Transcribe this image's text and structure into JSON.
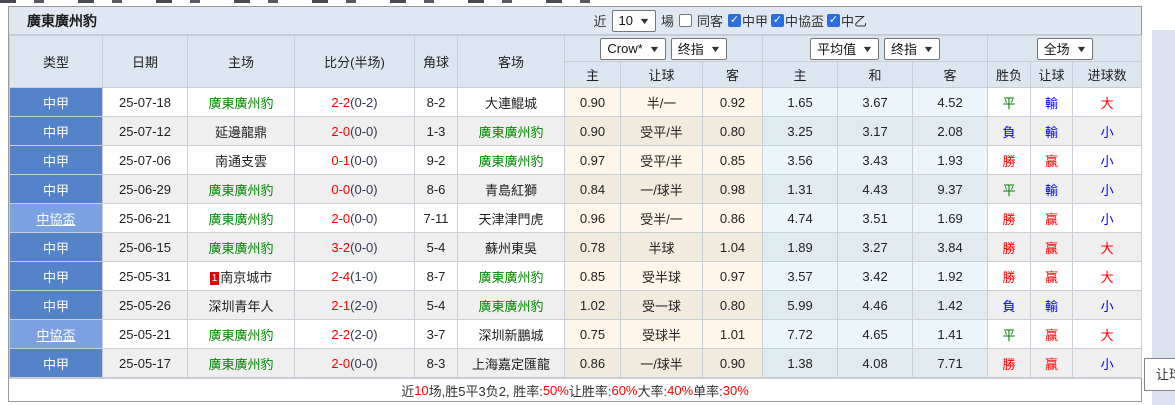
{
  "title": "廣東廣州豹",
  "controls": {
    "recent_label": "近",
    "recent_value": "10",
    "games_label": "場",
    "same_away_label": "同客",
    "same_away_checked": false,
    "leagues": [
      {
        "label": "中甲",
        "checked": true
      },
      {
        "label": "中協盃",
        "checked": true
      },
      {
        "label": "中乙",
        "checked": true
      }
    ]
  },
  "header": {
    "type": "类型",
    "date": "日期",
    "home": "主场",
    "score": "比分(半场)",
    "corners": "角球",
    "away": "客场",
    "ah": {
      "select1": "Crow*",
      "select2": "终指",
      "home": "主",
      "line": "让球",
      "away": "客"
    },
    "eu": {
      "select1": "平均值",
      "select2": "终指",
      "home": "主",
      "draw": "和",
      "away": "客"
    },
    "res": {
      "select": "全场",
      "wl": "胜负",
      "handicap": "让球",
      "goals": "进球数"
    }
  },
  "rows": [
    {
      "type": "中甲",
      "cup": false,
      "date": "25-07-18",
      "home": "廣東廣州豹",
      "home_green": true,
      "badge": "",
      "ft": "2-2",
      "ht": "(0-2)",
      "corners": "8-2",
      "away": "大連鯤城",
      "away_green": false,
      "ah_h": "0.90",
      "ah_line": "半/一",
      "ah_a": "0.92",
      "o_h": "1.65",
      "o_d": "3.67",
      "o_a": "4.52",
      "wl": "平",
      "wl_c": "draw",
      "hc": "輸",
      "hc_c": "loss",
      "gl": "大",
      "gl_c": "win"
    },
    {
      "type": "中甲",
      "cup": false,
      "date": "25-07-12",
      "home": "延邊龍鼎",
      "home_green": false,
      "badge": "",
      "ft": "2-0",
      "ht": "(0-0)",
      "corners": "1-3",
      "away": "廣東廣州豹",
      "away_green": true,
      "ah_h": "0.90",
      "ah_line": "受平/半",
      "ah_a": "0.80",
      "o_h": "3.25",
      "o_d": "3.17",
      "o_a": "2.08",
      "wl": "負",
      "wl_c": "loss",
      "hc": "輸",
      "hc_c": "loss",
      "gl": "小",
      "gl_c": "loss"
    },
    {
      "type": "中甲",
      "cup": false,
      "date": "25-07-06",
      "home": "南通支雲",
      "home_green": false,
      "badge": "",
      "ft": "0-1",
      "ht": "(0-0)",
      "corners": "9-2",
      "away": "廣東廣州豹",
      "away_green": true,
      "ah_h": "0.97",
      "ah_line": "受平/半",
      "ah_a": "0.85",
      "o_h": "3.56",
      "o_d": "3.43",
      "o_a": "1.93",
      "wl": "勝",
      "wl_c": "win",
      "hc": "赢",
      "hc_c": "win",
      "gl": "小",
      "gl_c": "loss"
    },
    {
      "type": "中甲",
      "cup": false,
      "date": "25-06-29",
      "home": "廣東廣州豹",
      "home_green": true,
      "badge": "",
      "ft": "0-0",
      "ht": "(0-0)",
      "corners": "8-6",
      "away": "青島紅獅",
      "away_green": false,
      "ah_h": "0.84",
      "ah_line": "一/球半",
      "ah_a": "0.98",
      "o_h": "1.31",
      "o_d": "4.43",
      "o_a": "9.37",
      "wl": "平",
      "wl_c": "draw",
      "hc": "輸",
      "hc_c": "loss",
      "gl": "小",
      "gl_c": "loss"
    },
    {
      "type": "中協盃",
      "cup": true,
      "date": "25-06-21",
      "home": "廣東廣州豹",
      "home_green": true,
      "badge": "",
      "ft": "2-0",
      "ht": "(0-0)",
      "corners": "7-11",
      "away": "天津津門虎",
      "away_green": false,
      "ah_h": "0.96",
      "ah_line": "受半/一",
      "ah_a": "0.86",
      "o_h": "4.74",
      "o_d": "3.51",
      "o_a": "1.69",
      "wl": "勝",
      "wl_c": "win",
      "hc": "赢",
      "hc_c": "win",
      "gl": "小",
      "gl_c": "loss"
    },
    {
      "type": "中甲",
      "cup": false,
      "date": "25-06-15",
      "home": "廣東廣州豹",
      "home_green": true,
      "badge": "",
      "ft": "3-2",
      "ht": "(0-0)",
      "corners": "5-4",
      "away": "蘇州東吳",
      "away_green": false,
      "ah_h": "0.78",
      "ah_line": "半球",
      "ah_a": "1.04",
      "o_h": "1.89",
      "o_d": "3.27",
      "o_a": "3.84",
      "wl": "勝",
      "wl_c": "win",
      "hc": "赢",
      "hc_c": "win",
      "gl": "大",
      "gl_c": "win"
    },
    {
      "type": "中甲",
      "cup": false,
      "date": "25-05-31",
      "home": "南京城市",
      "home_green": false,
      "badge": "1",
      "ft": "2-4",
      "ht": "(1-0)",
      "corners": "8-7",
      "away": "廣東廣州豹",
      "away_green": true,
      "ah_h": "0.85",
      "ah_line": "受半球",
      "ah_a": "0.97",
      "o_h": "3.57",
      "o_d": "3.42",
      "o_a": "1.92",
      "wl": "勝",
      "wl_c": "win",
      "hc": "赢",
      "hc_c": "win",
      "gl": "大",
      "gl_c": "win"
    },
    {
      "type": "中甲",
      "cup": false,
      "date": "25-05-26",
      "home": "深圳青年人",
      "home_green": false,
      "badge": "",
      "ft": "2-1",
      "ht": "(2-0)",
      "corners": "5-4",
      "away": "廣東廣州豹",
      "away_green": true,
      "ah_h": "1.02",
      "ah_line": "受一球",
      "ah_a": "0.80",
      "o_h": "5.99",
      "o_d": "4.46",
      "o_a": "1.42",
      "wl": "負",
      "wl_c": "loss",
      "hc": "輸",
      "hc_c": "loss",
      "gl": "小",
      "gl_c": "loss"
    },
    {
      "type": "中協盃",
      "cup": true,
      "date": "25-05-21",
      "home": "廣東廣州豹",
      "home_green": true,
      "badge": "",
      "ft": "2-2",
      "ht": "(2-0)",
      "corners": "3-7",
      "away": "深圳新鵬城",
      "away_green": false,
      "ah_h": "0.75",
      "ah_line": "受球半",
      "ah_a": "1.01",
      "o_h": "7.72",
      "o_d": "4.65",
      "o_a": "1.41",
      "wl": "平",
      "wl_c": "draw",
      "hc": "赢",
      "hc_c": "win",
      "gl": "大",
      "gl_c": "win"
    },
    {
      "type": "中甲",
      "cup": false,
      "date": "25-05-17",
      "home": "廣東廣州豹",
      "home_green": true,
      "badge": "",
      "ft": "2-0",
      "ht": "(0-0)",
      "corners": "8-3",
      "away": "上海嘉定匯龍",
      "away_green": false,
      "ah_h": "0.86",
      "ah_line": "一/球半",
      "ah_a": "0.90",
      "o_h": "1.38",
      "o_d": "4.08",
      "o_a": "7.71",
      "wl": "勝",
      "wl_c": "win",
      "hc": "赢",
      "hc_c": "win",
      "gl": "小",
      "gl_c": "loss"
    }
  ],
  "footer": {
    "segments": [
      {
        "t": "近",
        "red": false
      },
      {
        "t": "10",
        "red": true
      },
      {
        "t": "场,胜5平3负2, 胜率:",
        "red": false
      },
      {
        "t": "50%",
        "red": true
      },
      {
        "t": " 让胜率:",
        "red": false
      },
      {
        "t": "60%",
        "red": true
      },
      {
        "t": " 大率:",
        "red": false
      },
      {
        "t": "40%",
        "red": true
      },
      {
        "t": " 单率:",
        "red": false
      },
      {
        "t": "30%",
        "red": true
      }
    ]
  },
  "tooltip": {
    "text": "让球"
  },
  "colors": {
    "win": "#ff0000",
    "draw": "#008000",
    "loss": "#0000ff",
    "team_green": "#008800",
    "text": "#222222",
    "league_bg": "#5583c9",
    "cup_bg": "#7ba1e3"
  }
}
